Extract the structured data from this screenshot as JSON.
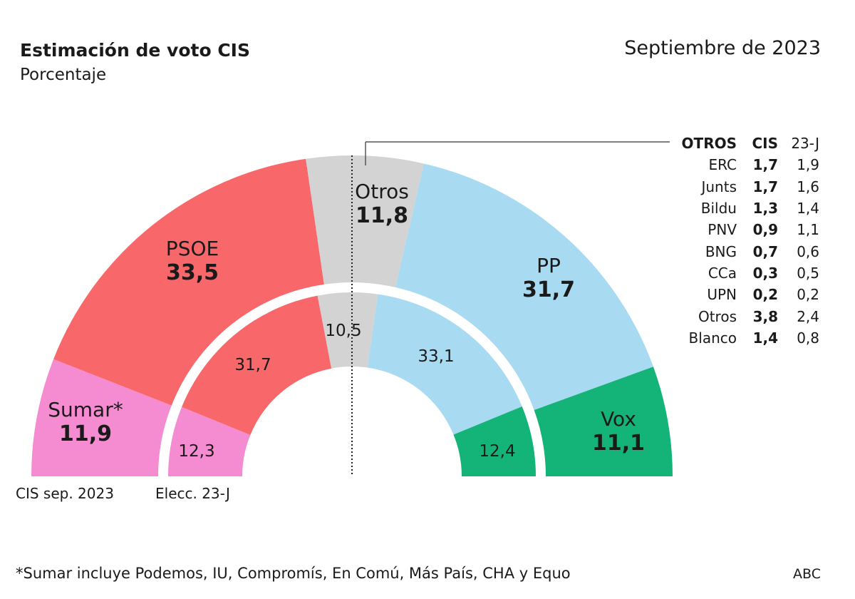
{
  "title": "Estimación de voto CIS",
  "subtitle": "Porcentaje",
  "date": "Septiembre de 2023",
  "chart_data": {
    "type": "semicircle-donut",
    "title": "Estimación de voto CIS",
    "subtitle": "Porcentaje",
    "categories": [
      "Sumar*",
      "PSOE",
      "Otros",
      "PP",
      "Vox"
    ],
    "colors": [
      "#f58bd0",
      "#f8686b",
      "#d3d3d3",
      "#a8dbf1",
      "#14b479"
    ],
    "series": [
      {
        "name": "CIS sep. 2023",
        "values": [
          11.9,
          33.5,
          11.8,
          31.7,
          11.1
        ],
        "labels": [
          "11,9",
          "33,5",
          "11,8",
          "31,7",
          "11,1"
        ]
      },
      {
        "name": "Elecc. 23-J",
        "values": [
          12.3,
          31.7,
          10.5,
          33.1,
          12.4
        ],
        "labels": [
          "12,3",
          "31,7",
          "10,5",
          "33,1",
          "12,4"
        ]
      }
    ],
    "otros_table": {
      "headers": [
        "OTROS",
        "CIS",
        "23-J"
      ],
      "rows": [
        [
          "ERC",
          "1,7",
          "1,9"
        ],
        [
          "Junts",
          "1,7",
          "1,6"
        ],
        [
          "Bildu",
          "1,3",
          "1,4"
        ],
        [
          "PNV",
          "0,9",
          "1,1"
        ],
        [
          "BNG",
          "0,7",
          "0,6"
        ],
        [
          "CCa",
          "0,3",
          "0,5"
        ],
        [
          "UPN",
          "0,2",
          "0,2"
        ],
        [
          "Otros",
          "3,8",
          "2,4"
        ],
        [
          "Blanco",
          "1,4",
          "0,8"
        ]
      ]
    }
  },
  "footnote": "*Sumar incluye Podemos, IU, Compromís, En Comú, Más País, CHA y Equo",
  "source": "ABC"
}
